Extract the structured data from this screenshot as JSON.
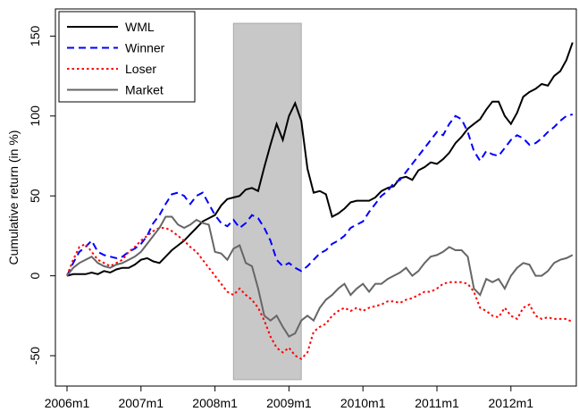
{
  "chart_data": {
    "type": "line",
    "y_label": "Cumulative return (in %)",
    "categories": [
      "2006m1",
      null,
      null,
      null,
      null,
      null,
      null,
      null,
      null,
      null,
      null,
      null,
      "2007m1",
      null,
      null,
      null,
      null,
      null,
      null,
      null,
      null,
      null,
      null,
      null,
      "2008m1",
      null,
      null,
      null,
      null,
      null,
      null,
      null,
      null,
      null,
      null,
      null,
      "2009m1",
      null,
      null,
      null,
      null,
      null,
      null,
      null,
      null,
      null,
      null,
      null,
      "2010m1",
      null,
      null,
      null,
      null,
      null,
      null,
      null,
      null,
      null,
      null,
      null,
      "2011m1",
      null,
      null,
      null,
      null,
      null,
      null,
      null,
      null,
      null,
      null,
      null,
      "2012m1",
      null,
      null,
      null,
      null,
      null,
      null,
      null,
      null,
      null,
      null
    ],
    "series": [
      {
        "name": "WML",
        "color": "#000000",
        "dash": "solid",
        "values": [
          0,
          1,
          1,
          1,
          2,
          1,
          3,
          2,
          4,
          5,
          5,
          7,
          10,
          11,
          9,
          8,
          12,
          16,
          19,
          22,
          26,
          30,
          34,
          36,
          38,
          44,
          48,
          49,
          50,
          54,
          55,
          53,
          68,
          82,
          95,
          85,
          100,
          108,
          97,
          67,
          52,
          53,
          51,
          37,
          39,
          42,
          46,
          47,
          47,
          47,
          49,
          53,
          55,
          56,
          61,
          62,
          60,
          66,
          68,
          71,
          70,
          73,
          77,
          83,
          87,
          92,
          95,
          98,
          104,
          109,
          109,
          100,
          95,
          102,
          112,
          115,
          117,
          120,
          119,
          125,
          128,
          135,
          146
        ]
      },
      {
        "name": "Winner",
        "color": "#0000ff",
        "dash": "dashed",
        "values": [
          0,
          8,
          15,
          18,
          22,
          15,
          13,
          12,
          11,
          12,
          15,
          17,
          20,
          25,
          33,
          38,
          45,
          51,
          52,
          50,
          45,
          50,
          52,
          45,
          38,
          33,
          31,
          35,
          30,
          33,
          38,
          36,
          30,
          22,
          10,
          6,
          8,
          5,
          3,
          6,
          10,
          14,
          16,
          20,
          22,
          25,
          30,
          32,
          34,
          40,
          45,
          50,
          53,
          58,
          60,
          65,
          70,
          75,
          80,
          85,
          90,
          88,
          95,
          100,
          98,
          90,
          78,
          72,
          78,
          76,
          75,
          80,
          85,
          88,
          86,
          82,
          83,
          86,
          90,
          93,
          97,
          100,
          101
        ]
      },
      {
        "name": "Loser",
        "color": "#ff0000",
        "dash": "dotted",
        "values": [
          0,
          10,
          18,
          20,
          15,
          10,
          8,
          6,
          8,
          10,
          15,
          18,
          22,
          25,
          28,
          30,
          30,
          28,
          25,
          22,
          18,
          15,
          10,
          5,
          0,
          -5,
          -10,
          -12,
          -8,
          -12,
          -15,
          -20,
          -28,
          -38,
          -45,
          -48,
          -45,
          -50,
          -52,
          -48,
          -35,
          -32,
          -30,
          -25,
          -22,
          -20,
          -22,
          -20,
          -22,
          -20,
          -19,
          -18,
          -16,
          -16,
          -17,
          -15,
          -14,
          -12,
          -10,
          -10,
          -8,
          -5,
          -4,
          -4,
          -4,
          -5,
          -10,
          -20,
          -22,
          -25,
          -26,
          -20,
          -25,
          -27,
          -20,
          -18,
          -25,
          -27,
          -26,
          -27,
          -27,
          -27,
          -29
        ]
      },
      {
        "name": "Market",
        "color": "#666666",
        "dash": "solid",
        "values": [
          0,
          5,
          8,
          10,
          12,
          8,
          6,
          5,
          7,
          8,
          10,
          12,
          15,
          20,
          25,
          30,
          37,
          37,
          32,
          30,
          32,
          35,
          33,
          32,
          15,
          14,
          10,
          17,
          19,
          8,
          6,
          -8,
          -25,
          -28,
          -25,
          -32,
          -38,
          -36,
          -28,
          -25,
          -28,
          -20,
          -15,
          -12,
          -8,
          -5,
          -12,
          -8,
          -5,
          -10,
          -5,
          -5,
          -2,
          0,
          2,
          5,
          0,
          3,
          8,
          12,
          13,
          15,
          18,
          16,
          16,
          12,
          -8,
          -12,
          -2,
          -4,
          -2,
          -8,
          0,
          5,
          8,
          7,
          0,
          0,
          3,
          8,
          10,
          11,
          13
        ]
      }
    ],
    "shade": {
      "x": [
        27,
        38
      ],
      "y": [
        -65,
        158
      ],
      "color": "#c8c8c8"
    },
    "ylim": [
      -69,
      167
    ],
    "yticks": [
      -50,
      0,
      50,
      100,
      150
    ],
    "legend": "top-left"
  }
}
